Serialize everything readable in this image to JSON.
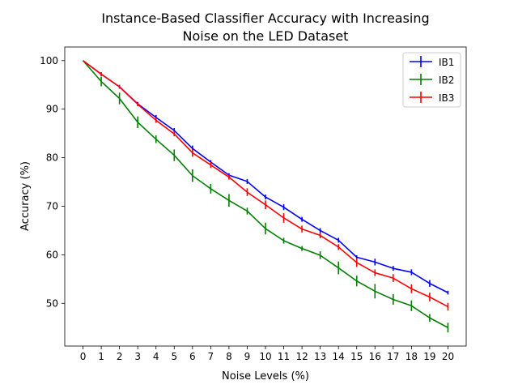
{
  "chart_data": {
    "type": "line",
    "title_lines": [
      "Instance-Based Classifier Accuracy with Increasing",
      "Noise on the LED Dataset"
    ],
    "xlabel": "Noise Levels (%)",
    "ylabel": "Accuracy (%)",
    "x": [
      0,
      1,
      2,
      3,
      4,
      5,
      6,
      7,
      8,
      9,
      10,
      11,
      12,
      13,
      14,
      15,
      16,
      17,
      18,
      19,
      20
    ],
    "xlim": [
      -1.0,
      21.0
    ],
    "ylim": [
      41.2,
      102.8
    ],
    "yticks": [
      50,
      60,
      70,
      80,
      90,
      100
    ],
    "grid": false,
    "legend_position": "top-right",
    "error_bars": true,
    "series": [
      {
        "name": "IB1",
        "color": "#0000ff",
        "values": [
          100,
          97.2,
          94.6,
          91.1,
          88.3,
          85.6,
          81.9,
          79.1,
          76.4,
          75.1,
          71.9,
          69.8,
          67.3,
          65.0,
          63.0,
          59.5,
          58.5,
          57.2,
          56.4,
          54.1,
          52.2
        ],
        "errors": [
          0,
          0.4,
          0.4,
          0.4,
          0.5,
          0.5,
          0.6,
          0.4,
          0.4,
          0.5,
          0.5,
          0.6,
          0.5,
          0.5,
          0.5,
          0.4,
          0.7,
          0.5,
          0.6,
          0.7,
          0.4
        ]
      },
      {
        "name": "IB2",
        "color": "#008000",
        "values": [
          100,
          95.7,
          92.2,
          87.3,
          83.8,
          80.5,
          76.3,
          73.6,
          71.2,
          69.0,
          65.4,
          62.9,
          61.3,
          59.9,
          57.3,
          54.6,
          52.5,
          50.8,
          49.5,
          47.0,
          45.0
        ],
        "errors": [
          0,
          1.0,
          1.2,
          1.2,
          0.8,
          1.2,
          1.3,
          1.0,
          1.3,
          0.7,
          1.2,
          0.6,
          0.5,
          0.8,
          1.3,
          1.1,
          1.5,
          1.1,
          1.1,
          0.8,
          1.0
        ]
      },
      {
        "name": "IB3",
        "color": "#ff0000",
        "values": [
          100,
          97.2,
          94.6,
          91.0,
          87.7,
          84.9,
          81.0,
          78.5,
          76.0,
          72.9,
          70.3,
          67.6,
          65.3,
          64.0,
          61.6,
          58.4,
          56.3,
          55.2,
          53.0,
          51.3,
          49.3
        ],
        "errors": [
          0,
          0.4,
          0.4,
          0.4,
          0.5,
          0.5,
          0.8,
          0.6,
          0.5,
          0.8,
          0.9,
          1.0,
          0.7,
          0.6,
          0.6,
          0.9,
          0.7,
          0.8,
          0.9,
          0.9,
          0.8
        ]
      }
    ]
  }
}
